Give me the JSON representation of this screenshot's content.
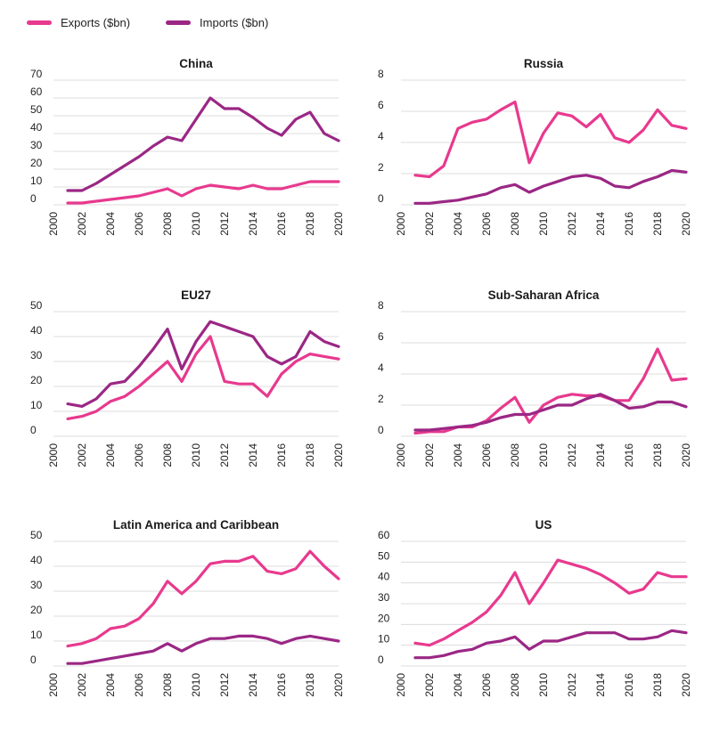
{
  "legend": {
    "exports_label": "Exports ($bn)",
    "imports_label": "Imports ($bn)"
  },
  "colors": {
    "exports": "#E8398E",
    "imports": "#9B2785"
  },
  "chart_data": [
    {
      "type": "line",
      "title": "China",
      "yticks": [
        0,
        10,
        20,
        30,
        40,
        50,
        60,
        70
      ],
      "ylim": [
        0,
        70
      ],
      "xticks": [
        "2000",
        "2002",
        "2004",
        "2006",
        "2008",
        "2010",
        "2012",
        "2014",
        "2016",
        "2018",
        "2020"
      ],
      "xlim": [
        2000,
        2020
      ],
      "grid": true,
      "x": [
        2001,
        2002,
        2003,
        2004,
        2005,
        2006,
        2007,
        2008,
        2009,
        2010,
        2011,
        2012,
        2013,
        2014,
        2015,
        2016,
        2017,
        2018,
        2019,
        2020
      ],
      "series": [
        {
          "name": "Exports ($bn)",
          "values": [
            1,
            1,
            2,
            3,
            4,
            5,
            7,
            9,
            5,
            9,
            11,
            10,
            9,
            11,
            9,
            9,
            11,
            13,
            13,
            13
          ]
        },
        {
          "name": "Imports ($bn)",
          "values": [
            8,
            8,
            12,
            17,
            22,
            27,
            33,
            38,
            36,
            48,
            60,
            54,
            54,
            49,
            43,
            39,
            48,
            52,
            40,
            36
          ]
        }
      ]
    },
    {
      "type": "line",
      "title": "Russia",
      "yticks": [
        0,
        2,
        4,
        6,
        8
      ],
      "ylim": [
        0,
        8
      ],
      "xticks": [
        "2000",
        "2002",
        "2004",
        "2006",
        "2008",
        "2010",
        "2012",
        "2014",
        "2016",
        "2018",
        "2020"
      ],
      "xlim": [
        2000,
        2020
      ],
      "grid": true,
      "x": [
        2001,
        2002,
        2003,
        2004,
        2005,
        2006,
        2007,
        2008,
        2009,
        2010,
        2011,
        2012,
        2013,
        2014,
        2015,
        2016,
        2017,
        2018,
        2019,
        2020
      ],
      "series": [
        {
          "name": "Exports ($bn)",
          "values": [
            1.9,
            1.8,
            2.5,
            4.9,
            5.3,
            5.5,
            6.1,
            6.6,
            2.7,
            4.6,
            5.9,
            5.7,
            5.0,
            5.8,
            4.3,
            4.0,
            4.8,
            6.1,
            5.1,
            4.9
          ]
        },
        {
          "name": "Imports ($bn)",
          "values": [
            0.1,
            0.1,
            0.2,
            0.3,
            0.5,
            0.7,
            1.1,
            1.3,
            0.8,
            1.2,
            1.5,
            1.8,
            1.9,
            1.7,
            1.2,
            1.1,
            1.5,
            1.8,
            2.2,
            2.1
          ]
        }
      ]
    },
    {
      "type": "line",
      "title": "EU27",
      "yticks": [
        0,
        10,
        20,
        30,
        40,
        50
      ],
      "ylim": [
        0,
        50
      ],
      "xticks": [
        "2000",
        "2002",
        "2004",
        "2006",
        "2008",
        "2010",
        "2012",
        "2014",
        "2016",
        "2018",
        "2020"
      ],
      "xlim": [
        2000,
        2020
      ],
      "grid": true,
      "x": [
        2001,
        2002,
        2003,
        2004,
        2005,
        2006,
        2007,
        2008,
        2009,
        2010,
        2011,
        2012,
        2013,
        2014,
        2015,
        2016,
        2017,
        2018,
        2019,
        2020
      ],
      "series": [
        {
          "name": "Exports ($bn)",
          "values": [
            7,
            8,
            10,
            14,
            16,
            20,
            25,
            30,
            22,
            33,
            40,
            22,
            21,
            21,
            16,
            25,
            30,
            33,
            32,
            31
          ]
        },
        {
          "name": "Imports ($bn)",
          "values": [
            13,
            12,
            15,
            21,
            22,
            28,
            35,
            43,
            27,
            38,
            46,
            44,
            42,
            40,
            32,
            29,
            32,
            42,
            38,
            36
          ]
        }
      ]
    },
    {
      "type": "line",
      "title": "Sub-Saharan Africa",
      "yticks": [
        0,
        2,
        4,
        6,
        8
      ],
      "ylim": [
        0,
        8
      ],
      "xticks": [
        "2000",
        "2002",
        "2004",
        "2006",
        "2008",
        "2010",
        "2012",
        "2014",
        "2016",
        "2018",
        "2020"
      ],
      "xlim": [
        2000,
        2020
      ],
      "grid": true,
      "x": [
        2001,
        2002,
        2003,
        2004,
        2005,
        2006,
        2007,
        2008,
        2009,
        2010,
        2011,
        2012,
        2013,
        2014,
        2015,
        2016,
        2017,
        2018,
        2019,
        2020
      ],
      "series": [
        {
          "name": "Exports ($bn)",
          "values": [
            0.2,
            0.3,
            0.3,
            0.6,
            0.6,
            1.0,
            1.8,
            2.5,
            0.9,
            2.0,
            2.5,
            2.7,
            2.6,
            2.6,
            2.3,
            2.3,
            3.7,
            5.6,
            3.6,
            3.7
          ]
        },
        {
          "name": "Imports ($bn)",
          "values": [
            0.4,
            0.4,
            0.5,
            0.6,
            0.7,
            0.9,
            1.2,
            1.4,
            1.4,
            1.7,
            2.0,
            2.0,
            2.4,
            2.7,
            2.3,
            1.8,
            1.9,
            2.2,
            2.2,
            1.9
          ]
        }
      ]
    },
    {
      "type": "line",
      "title": "Latin America and Caribbean",
      "yticks": [
        0,
        10,
        20,
        30,
        40,
        50
      ],
      "ylim": [
        0,
        50
      ],
      "xticks": [
        "2000",
        "2002",
        "2004",
        "2006",
        "2008",
        "2010",
        "2012",
        "2014",
        "2016",
        "2018",
        "2020"
      ],
      "xlim": [
        2000,
        2020
      ],
      "grid": true,
      "x": [
        2001,
        2002,
        2003,
        2004,
        2005,
        2006,
        2007,
        2008,
        2009,
        2010,
        2011,
        2012,
        2013,
        2014,
        2015,
        2016,
        2017,
        2018,
        2019,
        2020
      ],
      "series": [
        {
          "name": "Exports ($bn)",
          "values": [
            8,
            9,
            11,
            15,
            16,
            19,
            25,
            34,
            29,
            34,
            41,
            42,
            42,
            44,
            38,
            37,
            39,
            46,
            40,
            35
          ]
        },
        {
          "name": "Imports ($bn)",
          "values": [
            1,
            1,
            2,
            3,
            4,
            5,
            6,
            9,
            6,
            9,
            11,
            11,
            12,
            12,
            11,
            9,
            11,
            12,
            11,
            10
          ]
        }
      ]
    },
    {
      "type": "line",
      "title": "US",
      "yticks": [
        0,
        10,
        20,
        30,
        40,
        50,
        60
      ],
      "ylim": [
        0,
        60
      ],
      "xticks": [
        "2000",
        "2002",
        "2004",
        "2006",
        "2008",
        "2010",
        "2012",
        "2014",
        "2016",
        "2018",
        "2020"
      ],
      "xlim": [
        2000,
        2020
      ],
      "grid": true,
      "x": [
        2001,
        2002,
        2003,
        2004,
        2005,
        2006,
        2007,
        2008,
        2009,
        2010,
        2011,
        2012,
        2013,
        2014,
        2015,
        2016,
        2017,
        2018,
        2019,
        2020
      ],
      "series": [
        {
          "name": "Exports ($bn)",
          "values": [
            11,
            10,
            13,
            17,
            21,
            26,
            34,
            45,
            30,
            40,
            51,
            49,
            47,
            44,
            40,
            35,
            37,
            45,
            43,
            43
          ]
        },
        {
          "name": "Imports ($bn)",
          "values": [
            4,
            4,
            5,
            7,
            8,
            11,
            12,
            14,
            8,
            12,
            12,
            14,
            16,
            16,
            16,
            13,
            13,
            14,
            17,
            16
          ]
        }
      ]
    }
  ]
}
